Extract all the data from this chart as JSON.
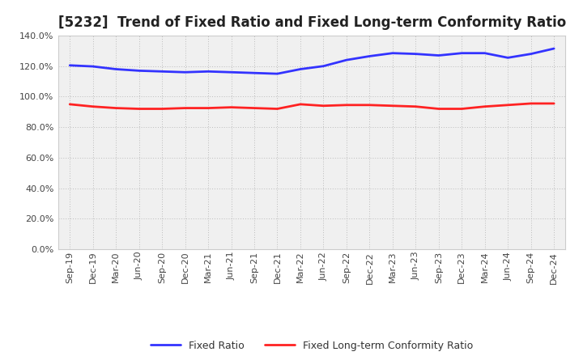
{
  "title": "[5232]  Trend of Fixed Ratio and Fixed Long-term Conformity Ratio",
  "x_labels": [
    "Sep-19",
    "Dec-19",
    "Mar-20",
    "Jun-20",
    "Sep-20",
    "Dec-20",
    "Mar-21",
    "Jun-21",
    "Sep-21",
    "Dec-21",
    "Mar-22",
    "Jun-22",
    "Sep-22",
    "Dec-22",
    "Mar-23",
    "Jun-23",
    "Sep-23",
    "Dec-23",
    "Mar-24",
    "Jun-24",
    "Sep-24",
    "Dec-24"
  ],
  "fixed_ratio": [
    120.5,
    119.8,
    118.0,
    117.0,
    116.5,
    116.0,
    116.5,
    116.0,
    115.5,
    115.0,
    118.0,
    120.0,
    124.0,
    126.5,
    128.5,
    128.0,
    127.0,
    128.5,
    128.5,
    125.5,
    128.0,
    131.5
  ],
  "fixed_lt_ratio": [
    95.0,
    93.5,
    92.5,
    92.0,
    92.0,
    92.5,
    92.5,
    93.0,
    92.5,
    92.0,
    95.0,
    94.0,
    94.5,
    94.5,
    94.0,
    93.5,
    92.0,
    92.0,
    93.5,
    94.5,
    95.5,
    95.5
  ],
  "fixed_ratio_color": "#3333FF",
  "fixed_lt_ratio_color": "#FF2222",
  "ylim": [
    0,
    140
  ],
  "yticks": [
    0,
    20,
    40,
    60,
    80,
    100,
    120,
    140
  ],
  "grid_color": "#bbbbbb",
  "plot_bg_color": "#f0f0f0",
  "fig_bg_color": "#ffffff",
  "legend_fixed_ratio": "Fixed Ratio",
  "legend_fixed_lt_ratio": "Fixed Long-term Conformity Ratio",
  "title_fontsize": 12,
  "tick_fontsize": 8,
  "legend_fontsize": 9
}
